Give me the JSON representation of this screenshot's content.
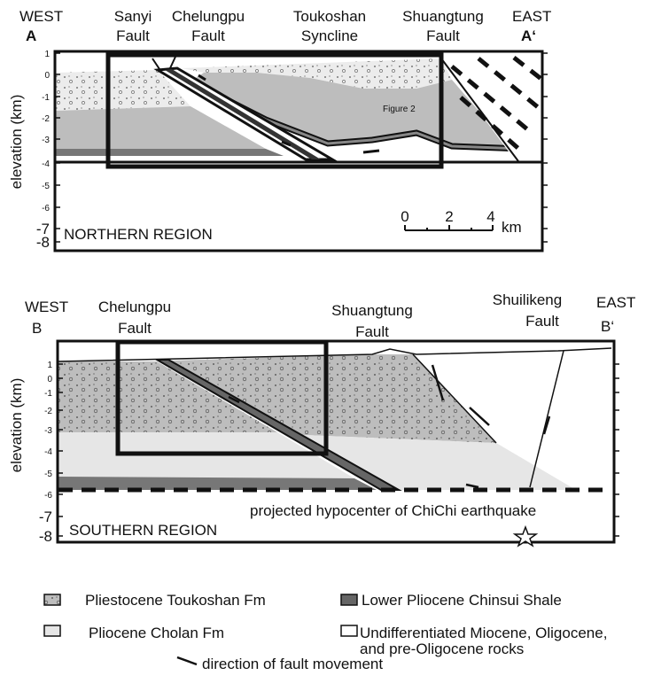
{
  "north": {
    "west": "WEST",
    "west_point": "A",
    "east": "EAST",
    "east_point": "A‘",
    "sanyi_fault": [
      "Sanyi",
      "Fault"
    ],
    "chelungpu_fault": [
      "Chelungpu",
      "Fault"
    ],
    "toukoshan_syncline": [
      "Toukoshan",
      "Syncline"
    ],
    "shuangtung_fault": [
      "Shuangtung",
      "Fault"
    ],
    "y_axis_label": "elevation (km)",
    "y_ticks": [
      "1",
      "0",
      "-1",
      "-2",
      "-3",
      "-4",
      "-5",
      "-6",
      "-7",
      "-8"
    ],
    "inset_label": "Figure 2",
    "region": "NORTHERN REGION",
    "scale": {
      "ticks": [
        "0",
        "2",
        "4"
      ],
      "unit": "km"
    }
  },
  "south": {
    "west": "WEST",
    "west_point": "B",
    "east": "EAST",
    "east_point": "B‘",
    "chelungpu_fault": [
      "Chelungpu",
      "Fault"
    ],
    "shuangtung_fault": [
      "Shuangtung",
      "Fault"
    ],
    "shuilikeng_fault": [
      "Shuilikeng",
      "Fault"
    ],
    "y_axis_label": "elevation (km)",
    "y_ticks": [
      "1",
      "0",
      "-1",
      "-2",
      "-3",
      "-4",
      "-5",
      "-6",
      "-7",
      "-8"
    ],
    "hypocenter": "projected hypocenter of ChiChi earthquake",
    "region": "SOUTHERN REGION"
  },
  "legend": {
    "toukoshan": "Pliestocene Toukoshan Fm",
    "chinsui": "Lower Pliocene Chinsui Shale",
    "cholan": "Pliocene Cholan Fm",
    "undifferentiated": [
      "Undifferentiated Miocene, Oligocene,",
      "and pre-Oligocene rocks"
    ],
    "fault_movement": "direction of fault movement"
  }
}
